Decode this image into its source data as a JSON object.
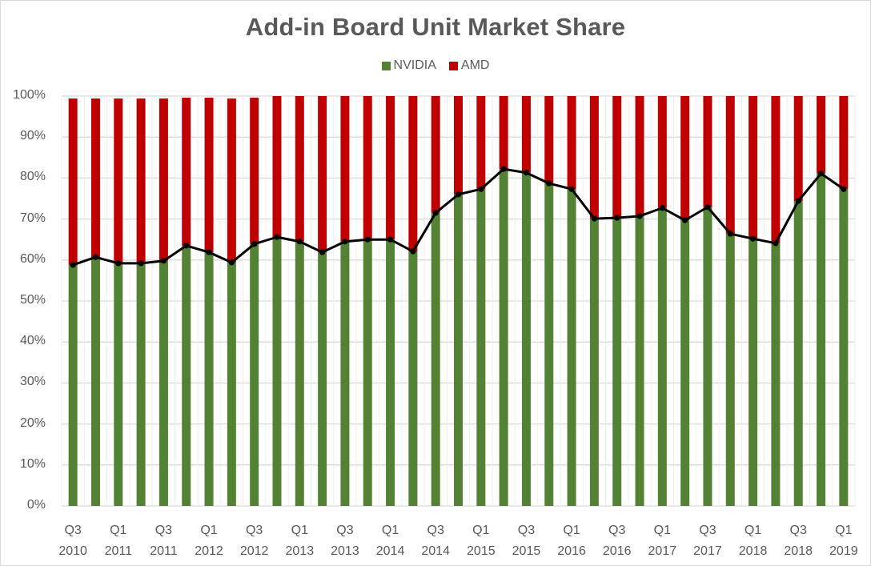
{
  "chart_data": {
    "type": "bar",
    "stacked": true,
    "title": "Add-in Board Unit Market Share",
    "xlabel": "",
    "ylabel": "",
    "ylim": [
      0,
      100
    ],
    "y_ticks": [
      "0%",
      "10%",
      "20%",
      "30%",
      "40%",
      "50%",
      "60%",
      "70%",
      "80%",
      "90%",
      "100%"
    ],
    "grid": true,
    "legend_position": "top",
    "categories": [
      "Q3 2010",
      "Q4 2010",
      "Q1 2011",
      "Q2 2011",
      "Q3 2011",
      "Q4 2011",
      "Q1 2012",
      "Q2 2012",
      "Q3 2012",
      "Q4 2012",
      "Q1 2013",
      "Q2 2013",
      "Q3 2013",
      "Q4 2013",
      "Q1 2014",
      "Q2 2014",
      "Q3 2014",
      "Q4 2014",
      "Q1 2015",
      "Q2 2015",
      "Q3 2015",
      "Q4 2015",
      "Q1 2016",
      "Q2 2016",
      "Q3 2016",
      "Q4 2016",
      "Q1 2017",
      "Q2 2017",
      "Q3 2017",
      "Q4 2017",
      "Q1 2018",
      "Q2 2018",
      "Q3 2018",
      "Q4 2018",
      "Q1 2019"
    ],
    "x_tick_labels": [
      {
        "index": 0,
        "line1": "Q3",
        "line2": "2010"
      },
      {
        "index": 2,
        "line1": "Q1",
        "line2": "2011"
      },
      {
        "index": 4,
        "line1": "Q3",
        "line2": "2011"
      },
      {
        "index": 6,
        "line1": "Q1",
        "line2": "2012"
      },
      {
        "index": 8,
        "line1": "Q3",
        "line2": "2012"
      },
      {
        "index": 10,
        "line1": "Q1",
        "line2": "2013"
      },
      {
        "index": 12,
        "line1": "Q3",
        "line2": "2013"
      },
      {
        "index": 14,
        "line1": "Q1",
        "line2": "2014"
      },
      {
        "index": 16,
        "line1": "Q3",
        "line2": "2014"
      },
      {
        "index": 18,
        "line1": "Q1",
        "line2": "2015"
      },
      {
        "index": 20,
        "line1": "Q3",
        "line2": "2015"
      },
      {
        "index": 22,
        "line1": "Q1",
        "line2": "2016"
      },
      {
        "index": 24,
        "line1": "Q3",
        "line2": "2016"
      },
      {
        "index": 26,
        "line1": "Q1",
        "line2": "2017"
      },
      {
        "index": 28,
        "line1": "Q3",
        "line2": "2017"
      },
      {
        "index": 30,
        "line1": "Q1",
        "line2": "2018"
      },
      {
        "index": 32,
        "line1": "Q3",
        "line2": "2018"
      },
      {
        "index": 34,
        "line1": "Q1",
        "line2": "2019"
      }
    ],
    "series": [
      {
        "name": "NVIDIA",
        "color": "#548235",
        "values": [
          58.8,
          60.7,
          59.2,
          59.2,
          59.8,
          63.5,
          61.9,
          59.4,
          63.9,
          65.6,
          64.5,
          61.9,
          64.5,
          65.0,
          65.0,
          62.1,
          71.5,
          76.0,
          77.3,
          82.2,
          81.3,
          78.7,
          77.3,
          70.1,
          70.3,
          70.7,
          72.7,
          69.7,
          72.9,
          66.4,
          65.2,
          64.1,
          74.4,
          81.1,
          77.3
        ]
      },
      {
        "name": "AMD",
        "color": "#c00000",
        "values": [
          40.6,
          38.7,
          40.2,
          40.2,
          39.6,
          36.1,
          37.7,
          40.0,
          35.7,
          34.4,
          35.5,
          38.1,
          35.5,
          35.0,
          35.0,
          37.9,
          28.5,
          24.0,
          22.7,
          17.8,
          18.7,
          21.3,
          22.7,
          29.9,
          29.7,
          29.3,
          27.3,
          30.3,
          27.1,
          33.6,
          34.8,
          35.9,
          25.6,
          18.9,
          22.7
        ]
      }
    ],
    "overlay_line": {
      "name": "NVIDIA share trend",
      "color": "#000000",
      "follows_series": "NVIDIA",
      "markers": true
    }
  },
  "title": "Add-in Board Unit Market Share",
  "legend": [
    {
      "label": "NVIDIA",
      "color": "#548235"
    },
    {
      "label": "AMD",
      "color": "#c00000"
    }
  ],
  "colors": {
    "text": "#595959",
    "grid": "#d9d9d9",
    "line": "#000000"
  }
}
